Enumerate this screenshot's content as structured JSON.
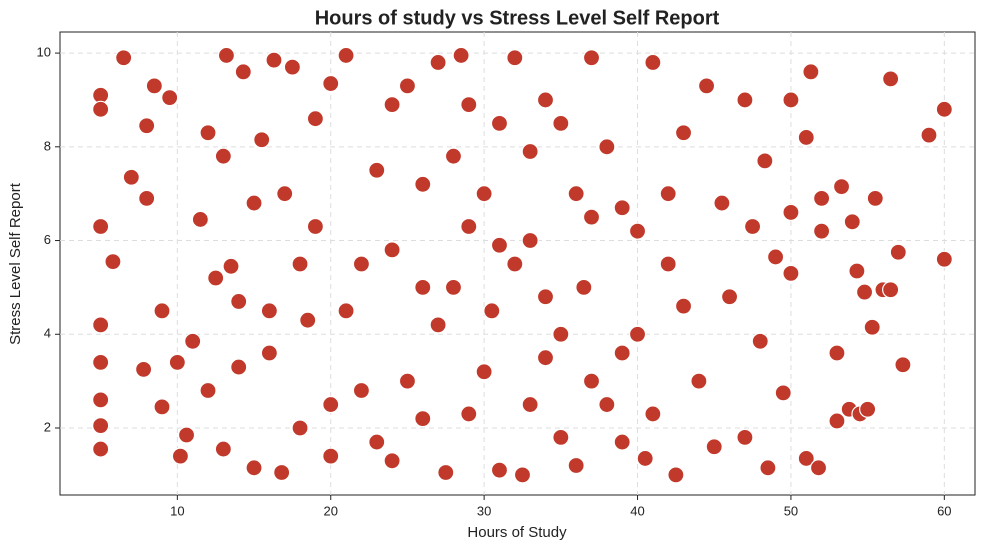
{
  "chart_data": {
    "type": "scatter",
    "title": "Hours of study vs Stress Level Self Report",
    "x_label": "Hours of Study",
    "y_label": "Stress Level Self Report",
    "color": "#c0392b",
    "grid": true,
    "xlim": [
      2.35,
      62.0
    ],
    "ylim": [
      0.57,
      10.45
    ],
    "xticks": [
      10,
      20,
      30,
      40,
      50,
      60
    ],
    "yticks": [
      2,
      4,
      6,
      8,
      10
    ],
    "x": [
      5,
      5,
      5,
      5,
      5,
      5,
      5,
      5,
      5.8,
      6.5,
      7,
      7.8,
      8,
      8,
      8.5,
      9,
      9,
      9.5,
      10,
      10.2,
      10.6,
      11,
      11.5,
      12,
      12.5,
      13,
      13.2,
      13.5,
      14,
      14.3,
      15,
      15.5,
      16,
      16.3,
      16.8,
      17,
      17.5,
      18,
      18.5,
      19,
      20,
      20,
      21,
      22,
      23,
      24,
      25,
      26,
      27,
      27.5,
      28,
      28.5,
      29,
      30,
      30.5,
      31,
      32,
      32.5,
      33,
      34,
      35,
      36,
      36.5,
      37,
      38,
      39,
      40,
      40.5,
      41,
      42,
      42.5,
      43,
      44,
      44.5,
      45,
      45.5,
      46,
      47,
      47,
      47.5,
      48,
      48.3,
      48.5,
      49,
      49.5,
      50,
      50,
      50,
      51,
      51,
      51.3,
      51.8,
      52,
      52,
      53,
      53,
      53.3,
      53.8,
      54,
      54.3,
      54.5,
      54.8,
      55,
      55.3,
      55.5,
      56,
      56.5,
      56.5,
      57,
      57.3,
      59,
      60,
      60,
      21,
      22,
      23,
      24,
      25,
      26,
      27,
      28,
      29,
      30,
      31,
      32,
      33,
      34,
      35,
      36,
      37,
      38,
      39,
      40,
      41,
      42,
      43,
      19,
      18,
      20,
      15,
      14,
      12,
      13,
      16,
      24,
      29,
      31,
      33,
      35,
      37,
      39,
      26,
      34
    ],
    "values": [
      9.1,
      8.8,
      6.3,
      4.2,
      3.4,
      2.6,
      2.05,
      1.55,
      5.55,
      9.9,
      7.35,
      3.25,
      6.9,
      8.45,
      9.3,
      4.5,
      2.45,
      9.05,
      3.4,
      1.4,
      1.85,
      3.85,
      6.45,
      8.3,
      5.2,
      1.55,
      9.95,
      5.45,
      3.3,
      9.6,
      1.15,
      8.15,
      3.6,
      9.85,
      1.05,
      7.0,
      9.7,
      2.0,
      4.3,
      6.3,
      9.35,
      1.4,
      9.95,
      5.5,
      1.7,
      8.9,
      3.0,
      7.2,
      9.8,
      1.05,
      5.0,
      9.95,
      2.3,
      7.0,
      4.5,
      1.1,
      9.9,
      1.0,
      6.0,
      3.5,
      8.5,
      1.2,
      5.0,
      9.9,
      2.5,
      6.7,
      4.0,
      1.35,
      9.8,
      5.5,
      1.0,
      8.3,
      3.0,
      9.3,
      1.6,
      6.8,
      4.8,
      9.0,
      1.8,
      6.3,
      3.85,
      7.7,
      1.15,
      5.65,
      2.75,
      9.0,
      6.6,
      5.3,
      1.35,
      8.2,
      9.6,
      1.15,
      6.9,
      6.2,
      2.15,
      3.6,
      7.15,
      2.4,
      6.4,
      5.35,
      2.3,
      4.9,
      2.4,
      4.15,
      6.9,
      4.95,
      9.45,
      4.95,
      5.75,
      3.35,
      8.25,
      8.8,
      5.6,
      4.5,
      2.8,
      7.5,
      5.8,
      9.3,
      2.2,
      4.2,
      7.8,
      6.3,
      3.2,
      8.5,
      5.5,
      2.5,
      9.0,
      4.0,
      7.0,
      3.0,
      8.0,
      1.7,
      6.2,
      2.3,
      7.0,
      4.6,
      8.6,
      5.5,
      2.5,
      6.8,
      4.7,
      2.8,
      7.8,
      4.5,
      1.3,
      8.9,
      5.9,
      7.9,
      1.8,
      6.5,
      3.6,
      5.0,
      4.8
    ]
  }
}
